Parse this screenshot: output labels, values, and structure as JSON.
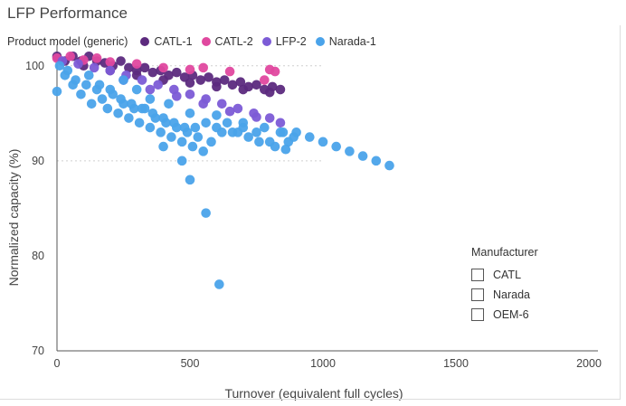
{
  "title": "LFP Performance",
  "legend": {
    "title": "Product model (generic)",
    "items": [
      {
        "label": "CATL-1",
        "color": "#5c2a7e"
      },
      {
        "label": "CATL-2",
        "color": "#e0489f"
      },
      {
        "label": "LFP-2",
        "color": "#7c5bd6"
      },
      {
        "label": "Narada-1",
        "color": "#4aa3ea"
      }
    ]
  },
  "filter": {
    "title": "Manufacturer",
    "options": [
      "CATL",
      "Narada",
      "OEM-6"
    ]
  },
  "chart_data": {
    "type": "scatter",
    "xlabel": "Turnover (equivalent full cycles)",
    "ylabel": "Normalized capacity (%)",
    "xlim": [
      0,
      2000
    ],
    "ylim": [
      70,
      101.5
    ],
    "xticks": [
      0,
      500,
      1000,
      1500,
      2000
    ],
    "yticks": [
      70,
      80,
      90,
      100
    ],
    "grid": "dotted reference lines",
    "series": [
      {
        "name": "CATL-1",
        "color": "#5c2a7e",
        "points": [
          [
            0,
            101
          ],
          [
            30,
            100.5
          ],
          [
            60,
            101
          ],
          [
            90,
            100.5
          ],
          [
            120,
            101
          ],
          [
            150,
            100.5
          ],
          [
            180,
            100.3
          ],
          [
            210,
            100
          ],
          [
            240,
            100.5
          ],
          [
            270,
            99.8
          ],
          [
            300,
            99.5
          ],
          [
            330,
            99.8
          ],
          [
            360,
            99.3
          ],
          [
            390,
            99.5
          ],
          [
            420,
            99
          ],
          [
            450,
            99.3
          ],
          [
            480,
            98.8
          ],
          [
            510,
            99
          ],
          [
            540,
            98.5
          ],
          [
            570,
            98.8
          ],
          [
            600,
            98.3
          ],
          [
            630,
            98.5
          ],
          [
            660,
            98
          ],
          [
            690,
            98.3
          ],
          [
            720,
            97.8
          ],
          [
            750,
            98
          ],
          [
            780,
            97.5
          ],
          [
            810,
            97.8
          ],
          [
            840,
            97.5
          ],
          [
            100,
            100
          ],
          [
            200,
            99.5
          ],
          [
            300,
            99
          ],
          [
            400,
            98.5
          ],
          [
            500,
            98.2
          ],
          [
            600,
            97.8
          ],
          [
            700,
            97.5
          ],
          [
            800,
            97.2
          ]
        ]
      },
      {
        "name": "CATL-2",
        "color": "#e0489f",
        "points": [
          [
            0,
            100.8
          ],
          [
            50,
            101
          ],
          [
            100,
            100.6
          ],
          [
            150,
            100.8
          ],
          [
            200,
            100.4
          ],
          [
            300,
            100.2
          ],
          [
            400,
            99.8
          ],
          [
            500,
            99.6
          ],
          [
            550,
            99.8
          ],
          [
            650,
            99.4
          ],
          [
            800,
            99.6
          ],
          [
            820,
            99.4
          ],
          [
            780,
            98.5
          ]
        ]
      },
      {
        "name": "LFP-2",
        "color": "#7c5bd6",
        "points": [
          [
            20,
            100.5
          ],
          [
            80,
            100.2
          ],
          [
            140,
            99.8
          ],
          [
            200,
            99.5
          ],
          [
            260,
            99
          ],
          [
            320,
            98.5
          ],
          [
            380,
            98
          ],
          [
            440,
            97.5
          ],
          [
            500,
            97
          ],
          [
            560,
            96.5
          ],
          [
            620,
            96
          ],
          [
            680,
            95.5
          ],
          [
            740,
            95
          ],
          [
            800,
            94.5
          ],
          [
            840,
            94
          ],
          [
            250,
            98.5
          ],
          [
            350,
            97.5
          ],
          [
            450,
            96.8
          ],
          [
            550,
            96
          ],
          [
            650,
            95.2
          ],
          [
            750,
            94.6
          ]
        ]
      },
      {
        "name": "Narada-1",
        "color": "#4aa3ea",
        "points": [
          [
            0,
            97.3
          ],
          [
            10,
            100
          ],
          [
            40,
            99.5
          ],
          [
            70,
            98.5
          ],
          [
            90,
            97
          ],
          [
            110,
            98
          ],
          [
            130,
            96
          ],
          [
            150,
            97.5
          ],
          [
            170,
            96.5
          ],
          [
            190,
            95.5
          ],
          [
            210,
            97
          ],
          [
            230,
            95
          ],
          [
            250,
            96
          ],
          [
            270,
            94.5
          ],
          [
            290,
            95.5
          ],
          [
            310,
            94
          ],
          [
            330,
            95.5
          ],
          [
            350,
            93.5
          ],
          [
            370,
            94.5
          ],
          [
            390,
            93
          ],
          [
            410,
            94
          ],
          [
            430,
            92.5
          ],
          [
            450,
            93.5
          ],
          [
            470,
            92
          ],
          [
            490,
            93
          ],
          [
            510,
            91.5
          ],
          [
            530,
            92.5
          ],
          [
            550,
            91
          ],
          [
            580,
            92
          ],
          [
            620,
            93
          ],
          [
            660,
            93
          ],
          [
            700,
            93.5
          ],
          [
            750,
            93
          ],
          [
            800,
            92
          ],
          [
            850,
            93
          ],
          [
            870,
            92
          ],
          [
            900,
            93
          ],
          [
            950,
            92.5
          ],
          [
            1000,
            92
          ],
          [
            1050,
            91.5
          ],
          [
            1100,
            91
          ],
          [
            1150,
            90.5
          ],
          [
            1200,
            90
          ],
          [
            1250,
            89.5
          ],
          [
            400,
            91.5
          ],
          [
            470,
            90
          ],
          [
            500,
            88
          ],
          [
            560,
            84.5
          ],
          [
            610,
            77
          ],
          [
            30,
            99
          ],
          [
            60,
            98
          ],
          [
            120,
            99
          ],
          [
            160,
            98
          ],
          [
            200,
            97.5
          ],
          [
            240,
            96.5
          ],
          [
            280,
            96
          ],
          [
            320,
            95.5
          ],
          [
            360,
            95
          ],
          [
            400,
            94.5
          ],
          [
            440,
            94
          ],
          [
            480,
            93.5
          ],
          [
            520,
            93.5
          ],
          [
            560,
            94
          ],
          [
            600,
            93.5
          ],
          [
            640,
            94
          ],
          [
            680,
            93
          ],
          [
            720,
            92.5
          ],
          [
            760,
            92
          ],
          [
            820,
            91.5
          ],
          [
            860,
            91.2
          ],
          [
            890,
            92.5
          ],
          [
            250,
            98.5
          ],
          [
            300,
            97.5
          ],
          [
            350,
            96.5
          ],
          [
            420,
            96
          ],
          [
            500,
            95
          ],
          [
            600,
            94.8
          ],
          [
            700,
            94
          ],
          [
            780,
            93.5
          ],
          [
            840,
            93
          ]
        ]
      }
    ]
  }
}
